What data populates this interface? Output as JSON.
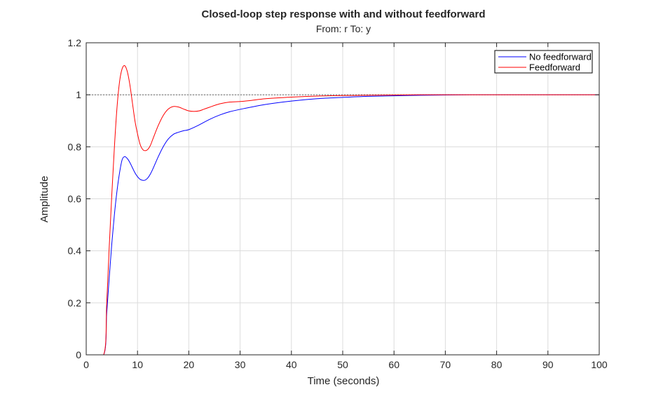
{
  "chart_data": {
    "type": "line",
    "title": "Closed-loop step response with and without feedforward",
    "subtitle": "From: r  To: y",
    "xlabel": "Time (seconds)",
    "ylabel": "Amplitude",
    "xlim": [
      0,
      100
    ],
    "ylim": [
      0,
      1.2
    ],
    "xticks": [
      0,
      10,
      20,
      30,
      40,
      50,
      60,
      70,
      80,
      90,
      100
    ],
    "yticks": [
      0,
      0.2,
      0.4,
      0.6,
      0.8,
      1,
      1.2
    ],
    "xtick_labels": [
      "0",
      "10",
      "20",
      "30",
      "40",
      "50",
      "60",
      "70",
      "80",
      "90",
      "100"
    ],
    "ytick_labels": [
      "0",
      "0.2",
      "0.4",
      "0.6",
      "0.8",
      "1",
      "1.2"
    ],
    "grid": true,
    "legend_position": "top-right",
    "reference_line": {
      "y": 1,
      "style": "dotted",
      "color": "#555555"
    },
    "series": [
      {
        "name": "No feedforward",
        "color": "#0000ff",
        "x": [
          0,
          3.4,
          4,
          4.5,
          5,
          5.5,
          6,
          6.5,
          7,
          7.5,
          8,
          8.5,
          9,
          9.5,
          10,
          10.5,
          11,
          11.5,
          12,
          12.5,
          13,
          14,
          15,
          16,
          17,
          18,
          19,
          20,
          22,
          24,
          26,
          28,
          30,
          35,
          40,
          45,
          50,
          55,
          60,
          65,
          70,
          75,
          80,
          90,
          100
        ],
        "y": [
          0,
          0,
          0.16,
          0.3,
          0.43,
          0.54,
          0.63,
          0.7,
          0.75,
          0.762,
          0.755,
          0.74,
          0.72,
          0.7,
          0.685,
          0.675,
          0.671,
          0.672,
          0.68,
          0.695,
          0.715,
          0.76,
          0.8,
          0.83,
          0.848,
          0.856,
          0.862,
          0.866,
          0.884,
          0.905,
          0.922,
          0.935,
          0.944,
          0.963,
          0.976,
          0.985,
          0.99,
          0.994,
          0.996,
          0.998,
          0.999,
          1.0,
          1.0,
          1.0,
          1.0
        ]
      },
      {
        "name": "Feedforward",
        "color": "#ff0000",
        "x": [
          0,
          3.4,
          4,
          4.5,
          5,
          5.5,
          6,
          6.5,
          7,
          7.5,
          8,
          8.5,
          9,
          9.5,
          10,
          10.5,
          11,
          11.5,
          12,
          12.5,
          13,
          14,
          15,
          16,
          17,
          18,
          19,
          20,
          21,
          22,
          23,
          24,
          26,
          28,
          30,
          32,
          35,
          40,
          45,
          50,
          55,
          60,
          65,
          70,
          80,
          90,
          100
        ],
        "y": [
          0,
          0,
          0.2,
          0.42,
          0.62,
          0.8,
          0.95,
          1.05,
          1.1,
          1.112,
          1.09,
          1.04,
          0.97,
          0.9,
          0.85,
          0.81,
          0.79,
          0.785,
          0.79,
          0.805,
          0.83,
          0.88,
          0.92,
          0.945,
          0.955,
          0.953,
          0.945,
          0.938,
          0.936,
          0.938,
          0.945,
          0.952,
          0.965,
          0.972,
          0.974,
          0.978,
          0.985,
          0.991,
          0.995,
          0.997,
          0.998,
          0.999,
          1.0,
          1.0,
          1.0,
          1.0,
          1.0
        ]
      }
    ]
  }
}
